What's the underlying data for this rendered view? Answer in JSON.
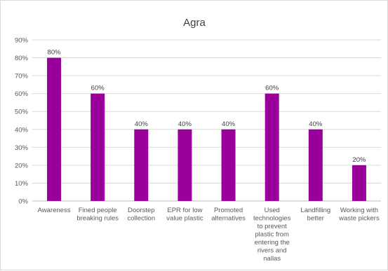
{
  "chart_data": {
    "type": "bar",
    "title": "Agra",
    "xlabel": "",
    "ylabel": "",
    "ylim": [
      0,
      90
    ],
    "y_ticks": [
      "0%",
      "10%",
      "20%",
      "30%",
      "40%",
      "50%",
      "60%",
      "70%",
      "80%",
      "90%"
    ],
    "grid": true,
    "legend": "none",
    "bar_color": "#990099",
    "categories": [
      [
        "Awareness"
      ],
      [
        "Fined people",
        "breaking rules"
      ],
      [
        "Doorstep",
        "collection"
      ],
      [
        "EPR for low",
        "value plastic"
      ],
      [
        "Promoted",
        "alternatives"
      ],
      [
        "Used",
        "technologies",
        "to prevent",
        "plastic from",
        "entering the",
        "rivers and",
        "nallas"
      ],
      [
        "Landfilling",
        "better"
      ],
      [
        "Working with",
        "waste pickers"
      ]
    ],
    "values": [
      80,
      60,
      40,
      40,
      40,
      60,
      40,
      20
    ],
    "data_labels": [
      "80%",
      "60%",
      "40%",
      "40%",
      "40%",
      "60%",
      "40%",
      "20%"
    ]
  }
}
